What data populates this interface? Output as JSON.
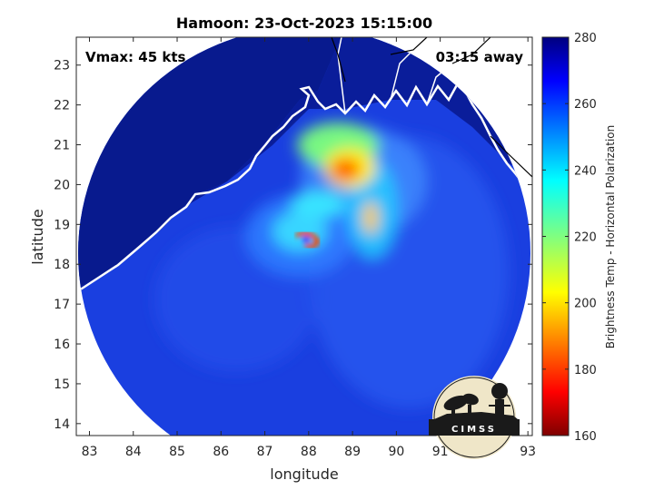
{
  "chart_data": {
    "type": "heatmap",
    "title": "Hamoon: 23-Oct-2023 15:15:00",
    "xlabel": "longitude",
    "ylabel": "latitude",
    "xlim": [
      82.7,
      93.1
    ],
    "ylim": [
      13.7,
      23.7
    ],
    "xticks": [
      83,
      84,
      85,
      86,
      87,
      88,
      89,
      90,
      91,
      92,
      93
    ],
    "yticks": [
      14,
      15,
      16,
      17,
      18,
      19,
      20,
      21,
      22,
      23
    ],
    "annotations": {
      "vmax": "Vmax: 45 kts",
      "away": "03:15 away"
    },
    "storm_center": {
      "lon": 88.0,
      "lat": 18.7
    },
    "colorbar": {
      "label": "Brightness Temp - Horizontal Polarization",
      "range": [
        160,
        280
      ],
      "ticks": [
        160,
        180,
        200,
        220,
        240,
        260,
        280
      ],
      "colormap": "jet"
    },
    "features": [
      {
        "name": "eyewall",
        "lon": 88.0,
        "lat": 18.65,
        "value": 185
      },
      {
        "name": "northern-convection",
        "lon": 88.9,
        "lat": 20.35,
        "value": 182
      },
      {
        "name": "rainband-south",
        "lon": 89.5,
        "lat": 18.9,
        "value": 195
      },
      {
        "name": "background-ocean",
        "value": 262
      },
      {
        "name": "land",
        "value": 278
      }
    ],
    "logo": "CIMSS"
  }
}
